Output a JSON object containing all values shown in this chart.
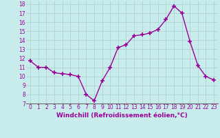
{
  "x": [
    0,
    1,
    2,
    3,
    4,
    5,
    6,
    7,
    8,
    9,
    10,
    11,
    12,
    13,
    14,
    15,
    16,
    17,
    18,
    19,
    20,
    21,
    22,
    23
  ],
  "y": [
    11.7,
    11.0,
    11.0,
    10.4,
    10.3,
    10.2,
    10.0,
    8.0,
    7.3,
    9.5,
    11.0,
    13.2,
    13.5,
    14.5,
    14.6,
    14.8,
    15.2,
    16.3,
    17.8,
    17.0,
    13.9,
    11.2,
    10.0,
    9.6
  ],
  "line_color": "#990099",
  "marker": "+",
  "marker_size": 4,
  "bg_color": "#c8ecec",
  "grid_color": "#aacccc",
  "xlabel": "Windchill (Refroidissement éolien,°C)",
  "ylim": [
    7,
    18
  ],
  "xlim": [
    -0.5,
    23.5
  ],
  "yticks": [
    7,
    8,
    9,
    10,
    11,
    12,
    13,
    14,
    15,
    16,
    17,
    18
  ],
  "xticks": [
    0,
    1,
    2,
    3,
    4,
    5,
    6,
    7,
    8,
    9,
    10,
    11,
    12,
    13,
    14,
    15,
    16,
    17,
    18,
    19,
    20,
    21,
    22,
    23
  ],
  "tick_label_color": "#990099",
  "axis_label_color": "#990099",
  "tick_fontsize": 5.5,
  "xlabel_fontsize": 6.5,
  "line_width": 1.0,
  "marker_color": "#990099"
}
